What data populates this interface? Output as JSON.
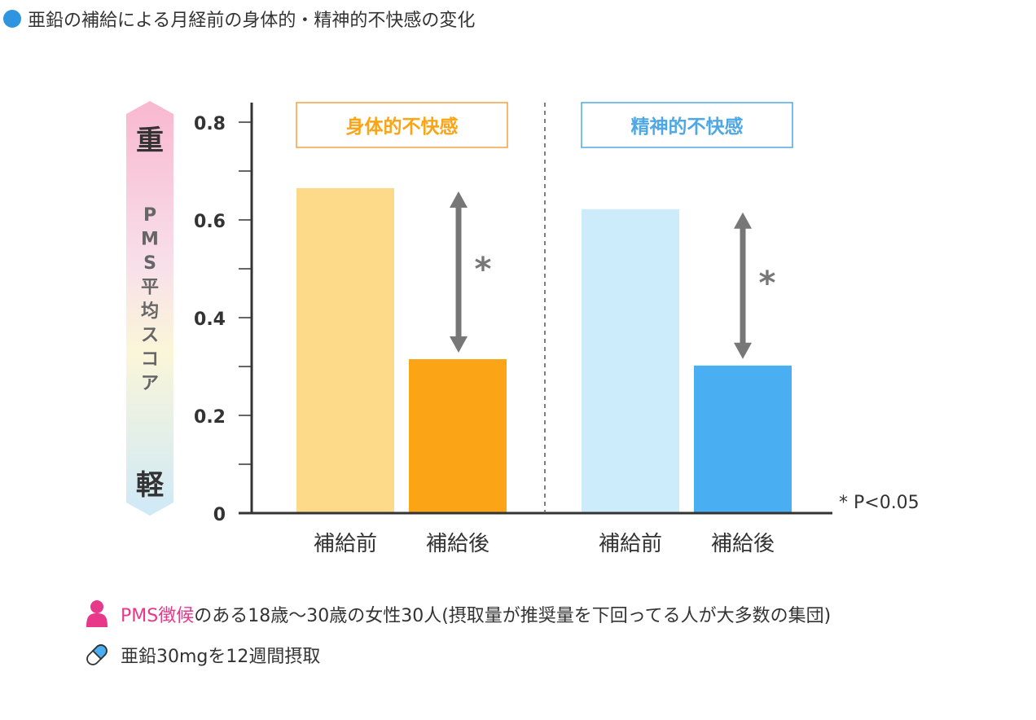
{
  "title": "亜鉛の補給による月経前の身体的・精神的不快感の変化",
  "colors": {
    "accent_blue": "#2f95e0",
    "orange_light": "#fdd98a",
    "orange_dark": "#fba416",
    "orange_border": "#f4a23d",
    "blue_light": "#ccecfc",
    "blue_dark": "#4aaef2",
    "blue_border": "#4fa8e6",
    "pink": "#e8388a"
  },
  "scale": {
    "heavy": "重",
    "light": "軽",
    "label_chars": [
      "P",
      "M",
      "S",
      "平",
      "均",
      "ス",
      "コ",
      "ア"
    ]
  },
  "chart_data": {
    "type": "bar",
    "ylim": [
      0,
      0.8
    ],
    "ytick_labels": [
      "0",
      "0.2",
      "0.4",
      "0.6",
      "0.8"
    ],
    "groups": [
      {
        "label": "身体的不快感",
        "categories": [
          "補給前",
          "補給後"
        ],
        "values": [
          0.665,
          0.315
        ],
        "significance": "*"
      },
      {
        "label": "精神的不快感",
        "categories": [
          "補給前",
          "補給後"
        ],
        "values": [
          0.622,
          0.302
        ],
        "significance": "*"
      }
    ],
    "annotation": "* P<0.05"
  },
  "legend": {
    "subjects_highlight": "PMS徴候",
    "subjects_text": "のある18歳〜30歳の女性30人(摂取量が推奨量を下回ってる人が大多数の集団)",
    "dose_text": "亜鉛30mgを12週間摂取"
  }
}
